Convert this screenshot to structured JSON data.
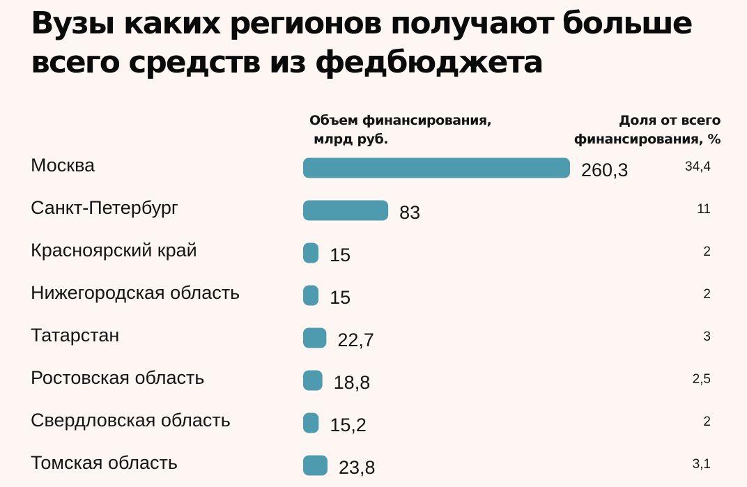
{
  "title": "Вузы каких регионов получают больше всего средств из федбюджета",
  "header": {
    "amount_label_line1": "Объем финансирования,",
    "amount_label_line2": "млрд руб.",
    "share_label_line1": "Доля от всего",
    "share_label_line2": "финансирования, %"
  },
  "colors": {
    "bar": "#4e9bb0",
    "background": "#fdf6f3"
  },
  "chart_data": {
    "type": "bar",
    "orientation": "horizontal",
    "title": "Вузы каких регионов получают больше всего средств из федбюджета",
    "xlabel": "Объем финансирования, млрд руб.",
    "categories": [
      "Москва",
      "Санкт-Петербург",
      "Красноярский край",
      "Нижегородская область",
      "Татарстан",
      "Ростовская область",
      "Свердловская область",
      "Томская область"
    ],
    "values": [
      260.3,
      83,
      15,
      15,
      22.7,
      18.8,
      15.2,
      23.8
    ],
    "value_labels": [
      "260,3",
      "83",
      "15",
      "15",
      "22,7",
      "18,8",
      "15,2",
      "23,8"
    ],
    "share_percent": [
      34.4,
      11,
      2,
      2,
      3,
      2.5,
      2,
      3.1
    ],
    "share_labels": [
      "34,4",
      "11",
      "2",
      "2",
      "3",
      "2,5",
      "2",
      "3,1"
    ],
    "xlim": [
      0,
      260.3
    ],
    "grid": false,
    "legend": "none"
  }
}
